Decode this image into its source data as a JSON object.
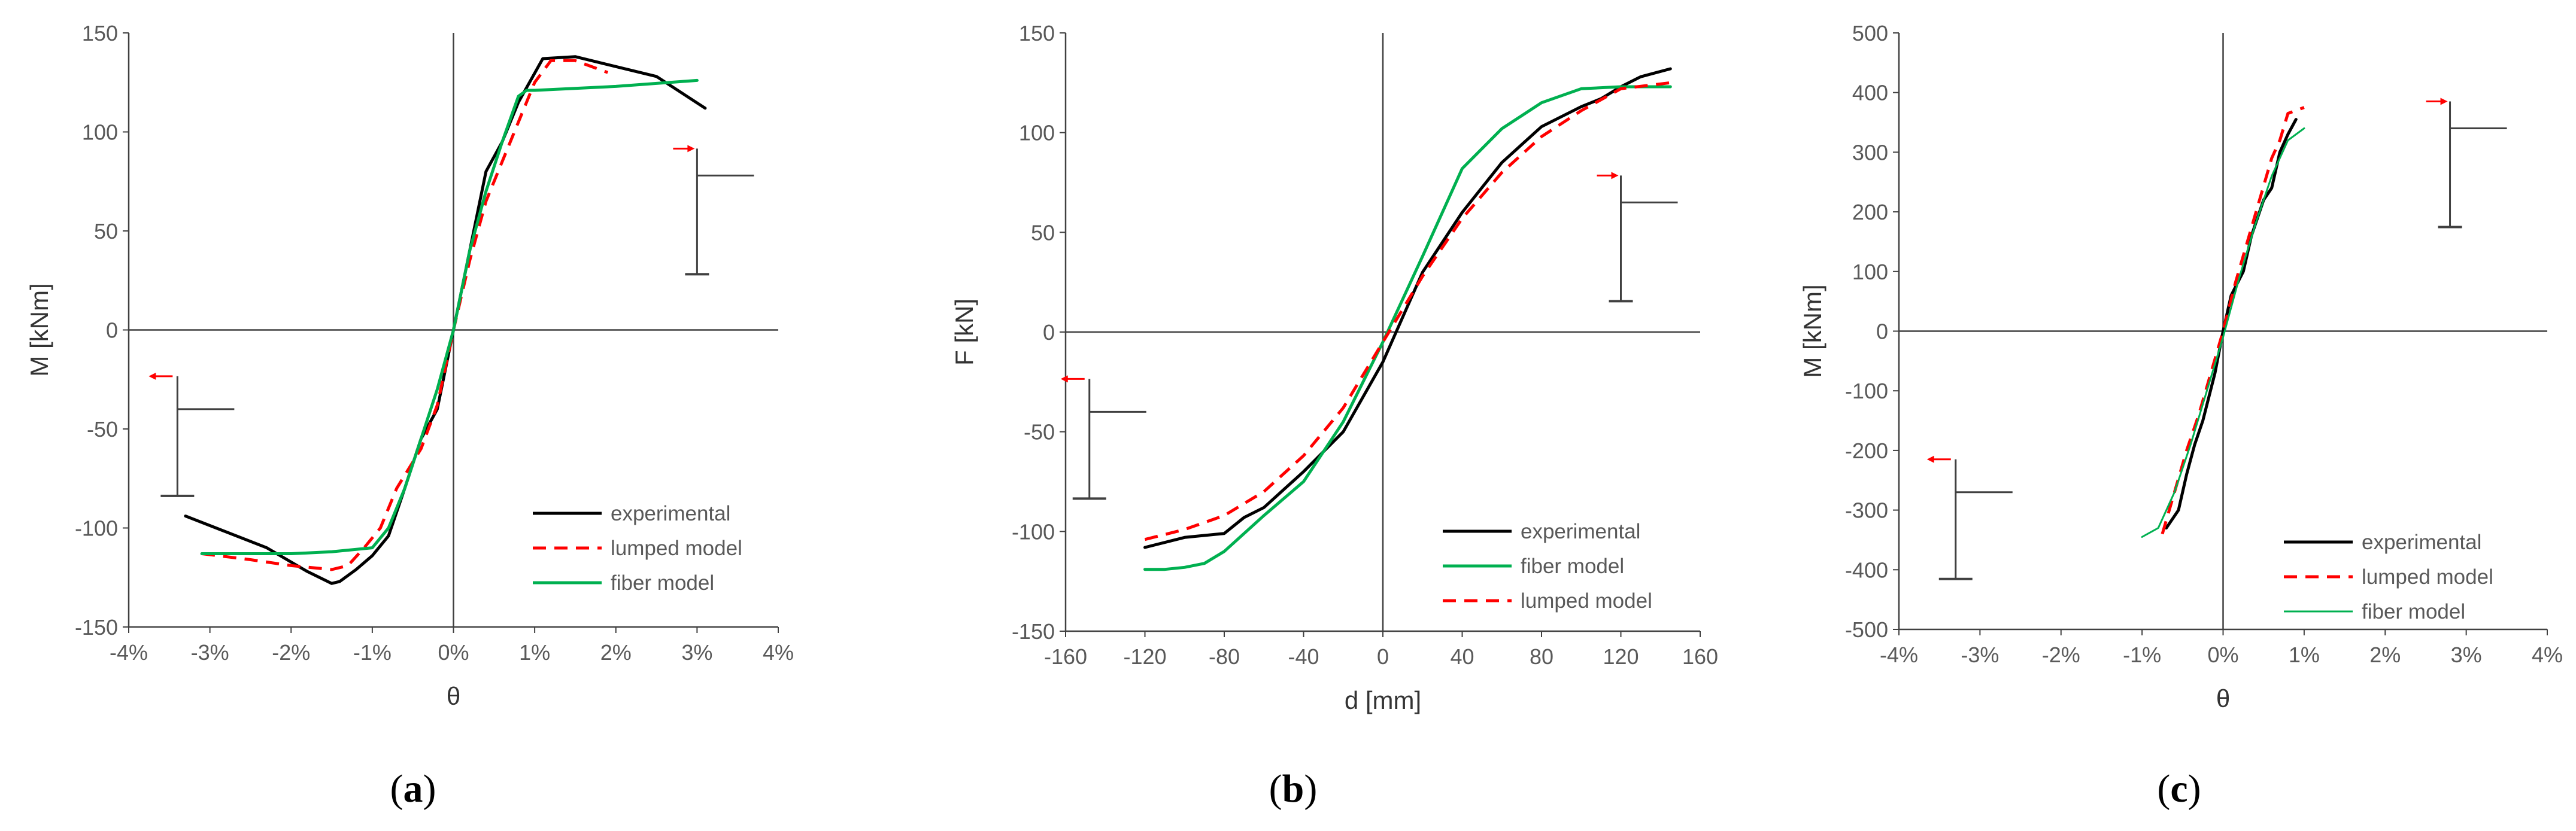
{
  "colors": {
    "experimental": "#000000",
    "lumped": "#ff0000",
    "fiber": "#00b050",
    "arrow": "#ff0000",
    "axis": "#404040",
    "inset": "#404040"
  },
  "chart_data": [
    {
      "id": "a",
      "type": "line",
      "caption": {
        "open": "(",
        "letter": "a",
        "close": ")"
      },
      "xlabel": "θ",
      "ylabel": "M [kNm]",
      "xlim": [
        -4,
        4
      ],
      "ylim": [
        -150,
        150
      ],
      "xticks": [
        -4,
        -3,
        -2,
        -1,
        0,
        1,
        2,
        3,
        4
      ],
      "xtick_labels": [
        "-4%",
        "-3%",
        "-2%",
        "-1%",
        "0%",
        "1%",
        "2%",
        "3%",
        "4%"
      ],
      "yticks": [
        -150,
        -100,
        -50,
        0,
        50,
        100,
        150
      ],
      "ytick_labels": [
        "-150",
        "-100",
        "-50",
        "0",
        "50",
        "100",
        "150"
      ],
      "legend": [
        {
          "label": "experimental",
          "series": "experimental"
        },
        {
          "label": "lumped model",
          "series": "lumped"
        },
        {
          "label": "fiber model",
          "series": "fiber"
        }
      ],
      "insets": [
        {
          "dir": "left",
          "x": -3.4,
          "y": -40
        },
        {
          "dir": "right",
          "x": 3.0,
          "y": 78
        }
      ],
      "series": [
        {
          "key": "experimental",
          "name": "experimental",
          "style": "solid",
          "x": [
            -3.3,
            -2.8,
            -2.3,
            -1.8,
            -1.5,
            -1.4,
            -1.2,
            -1.0,
            -0.8,
            -0.6,
            -0.4,
            -0.2,
            0.0,
            0.2,
            0.4,
            0.6,
            0.8,
            1.1,
            1.5,
            2.0,
            2.5,
            3.1
          ],
          "y": [
            -94,
            -102,
            -110,
            -122,
            -128,
            -127,
            -121,
            -114,
            -104,
            -80,
            -55,
            -40,
            0,
            40,
            80,
            95,
            115,
            137,
            138,
            133,
            128,
            112
          ]
        },
        {
          "key": "lumped",
          "name": "lumped model",
          "style": "dashed",
          "x": [
            -3.1,
            -2.5,
            -2.0,
            -1.5,
            -1.3,
            -1.1,
            -0.9,
            -0.7,
            -0.4,
            -0.2,
            0.0,
            0.2,
            0.4,
            0.6,
            0.8,
            1.0,
            1.2,
            1.5,
            1.9
          ],
          "y": [
            -113,
            -116,
            -119,
            -121,
            -119,
            -110,
            -100,
            -80,
            -60,
            -38,
            0,
            35,
            65,
            85,
            105,
            125,
            136,
            136,
            130
          ]
        },
        {
          "key": "fiber",
          "name": "fiber model",
          "style": "solid",
          "x": [
            -3.1,
            -2.5,
            -2.0,
            -1.5,
            -1.0,
            -0.8,
            -0.6,
            -0.4,
            -0.2,
            0.0,
            0.2,
            0.4,
            0.6,
            0.8,
            0.9,
            1.0,
            2.0,
            3.0
          ],
          "y": [
            -113,
            -113,
            -113,
            -112,
            -110,
            -100,
            -80,
            -55,
            -30,
            0,
            40,
            70,
            95,
            118,
            121,
            121,
            123,
            126
          ]
        }
      ]
    },
    {
      "id": "b",
      "type": "line",
      "caption": {
        "open": "(",
        "letter": "b",
        "close": ")"
      },
      "xlabel": "d [mm]",
      "ylabel": "F [kN]",
      "xlim": [
        -160,
        160
      ],
      "ylim": [
        -150,
        150
      ],
      "xticks": [
        -160,
        -120,
        -80,
        -40,
        0,
        40,
        80,
        120,
        160
      ],
      "xtick_labels": [
        "-160",
        "-120",
        "-80",
        "-40",
        "0",
        "40",
        "80",
        "120",
        "160"
      ],
      "yticks": [
        -150,
        -100,
        -50,
        0,
        50,
        100,
        150
      ],
      "ytick_labels": [
        "-150",
        "-100",
        "-50",
        "0",
        "50",
        "100",
        "150"
      ],
      "legend": [
        {
          "label": "experimental",
          "series": "experimental"
        },
        {
          "label": "fiber model",
          "series": "fiber"
        },
        {
          "label": "lumped model",
          "series": "lumped"
        }
      ],
      "insets": [
        {
          "dir": "left",
          "x": -148,
          "y": -40
        },
        {
          "dir": "right",
          "x": 120,
          "y": 65
        }
      ],
      "series": [
        {
          "key": "experimental",
          "name": "experimental",
          "style": "solid",
          "x": [
            -120,
            -100,
            -80,
            -70,
            -60,
            -40,
            -20,
            0,
            20,
            40,
            60,
            80,
            100,
            110,
            120,
            130,
            145
          ],
          "y": [
            -108,
            -103,
            -101,
            -93,
            -88,
            -70,
            -50,
            -15,
            30,
            60,
            85,
            103,
            113,
            117,
            123,
            128,
            132
          ]
        },
        {
          "key": "fiber",
          "name": "fiber model",
          "style": "solid",
          "x": [
            -120,
            -110,
            -100,
            -90,
            -80,
            -60,
            -40,
            -20,
            0,
            20,
            40,
            60,
            80,
            100,
            120,
            145
          ],
          "y": [
            -119,
            -119,
            -118,
            -116,
            -110,
            -92,
            -75,
            -45,
            -5,
            38,
            82,
            102,
            115,
            122,
            123,
            123
          ]
        },
        {
          "key": "lumped",
          "name": "lumped model",
          "style": "dashed",
          "x": [
            -120,
            -100,
            -80,
            -60,
            -40,
            -20,
            0,
            20,
            40,
            60,
            80,
            100,
            120,
            145
          ],
          "y": [
            -104,
            -99,
            -92,
            -80,
            -62,
            -38,
            -5,
            28,
            57,
            80,
            98,
            111,
            122,
            125
          ]
        }
      ]
    },
    {
      "id": "c",
      "type": "line",
      "caption": {
        "open": "(",
        "letter": "c",
        "close": ")"
      },
      "xlabel": "θ",
      "ylabel": "M [kNm]",
      "xlim": [
        -4,
        4
      ],
      "ylim": [
        -500,
        500
      ],
      "xticks": [
        -4,
        -3,
        -2,
        -1,
        0,
        1,
        2,
        3,
        4
      ],
      "xtick_labels": [
        "-4%",
        "-3%",
        "-2%",
        "-1%",
        "0%",
        "1%",
        "2%",
        "3%",
        "4%"
      ],
      "yticks": [
        -500,
        -400,
        -300,
        -200,
        -100,
        0,
        100,
        200,
        300,
        400,
        500
      ],
      "ytick_labels": [
        "-500",
        "-400",
        "-300",
        "-200",
        "-100",
        "0",
        "100",
        "200",
        "300",
        "400",
        "500"
      ],
      "legend": [
        {
          "label": "experimental",
          "series": "experimental"
        },
        {
          "label": "lumped model",
          "series": "lumped"
        },
        {
          "label": "fiber model",
          "series": "fiber"
        }
      ],
      "insets": [
        {
          "dir": "left",
          "x": -3.3,
          "y": -270
        },
        {
          "dir": "right",
          "x": 2.8,
          "y": 340
        }
      ],
      "series": [
        {
          "key": "experimental",
          "name": "experimental",
          "style": "solid",
          "x": [
            -0.7,
            -0.55,
            -0.45,
            -0.35,
            -0.25,
            -0.1,
            0.0,
            0.1,
            0.25,
            0.35,
            0.5,
            0.6,
            0.7,
            0.8,
            0.9
          ],
          "y": [
            -330,
            -300,
            -240,
            -190,
            -150,
            -70,
            0,
            60,
            100,
            160,
            220,
            240,
            300,
            330,
            355
          ]
        },
        {
          "key": "lumped",
          "name": "lumped model",
          "style": "dashed",
          "x": [
            -0.75,
            -0.6,
            -0.45,
            -0.3,
            -0.15,
            0.0,
            0.15,
            0.3,
            0.45,
            0.6,
            0.7,
            0.8,
            0.9,
            1.0
          ],
          "y": [
            -340,
            -270,
            -200,
            -140,
            -70,
            0,
            80,
            150,
            220,
            290,
            320,
            365,
            370,
            375
          ]
        },
        {
          "key": "fiber",
          "name": "fiber model",
          "style": "solid",
          "x": [
            -1.0,
            -0.8,
            -0.6,
            -0.4,
            -0.2,
            0.0,
            0.2,
            0.4,
            0.6,
            0.8,
            1.0
          ],
          "y": [
            -345,
            -330,
            -270,
            -190,
            -100,
            -10,
            90,
            180,
            260,
            320,
            340
          ]
        }
      ]
    }
  ]
}
